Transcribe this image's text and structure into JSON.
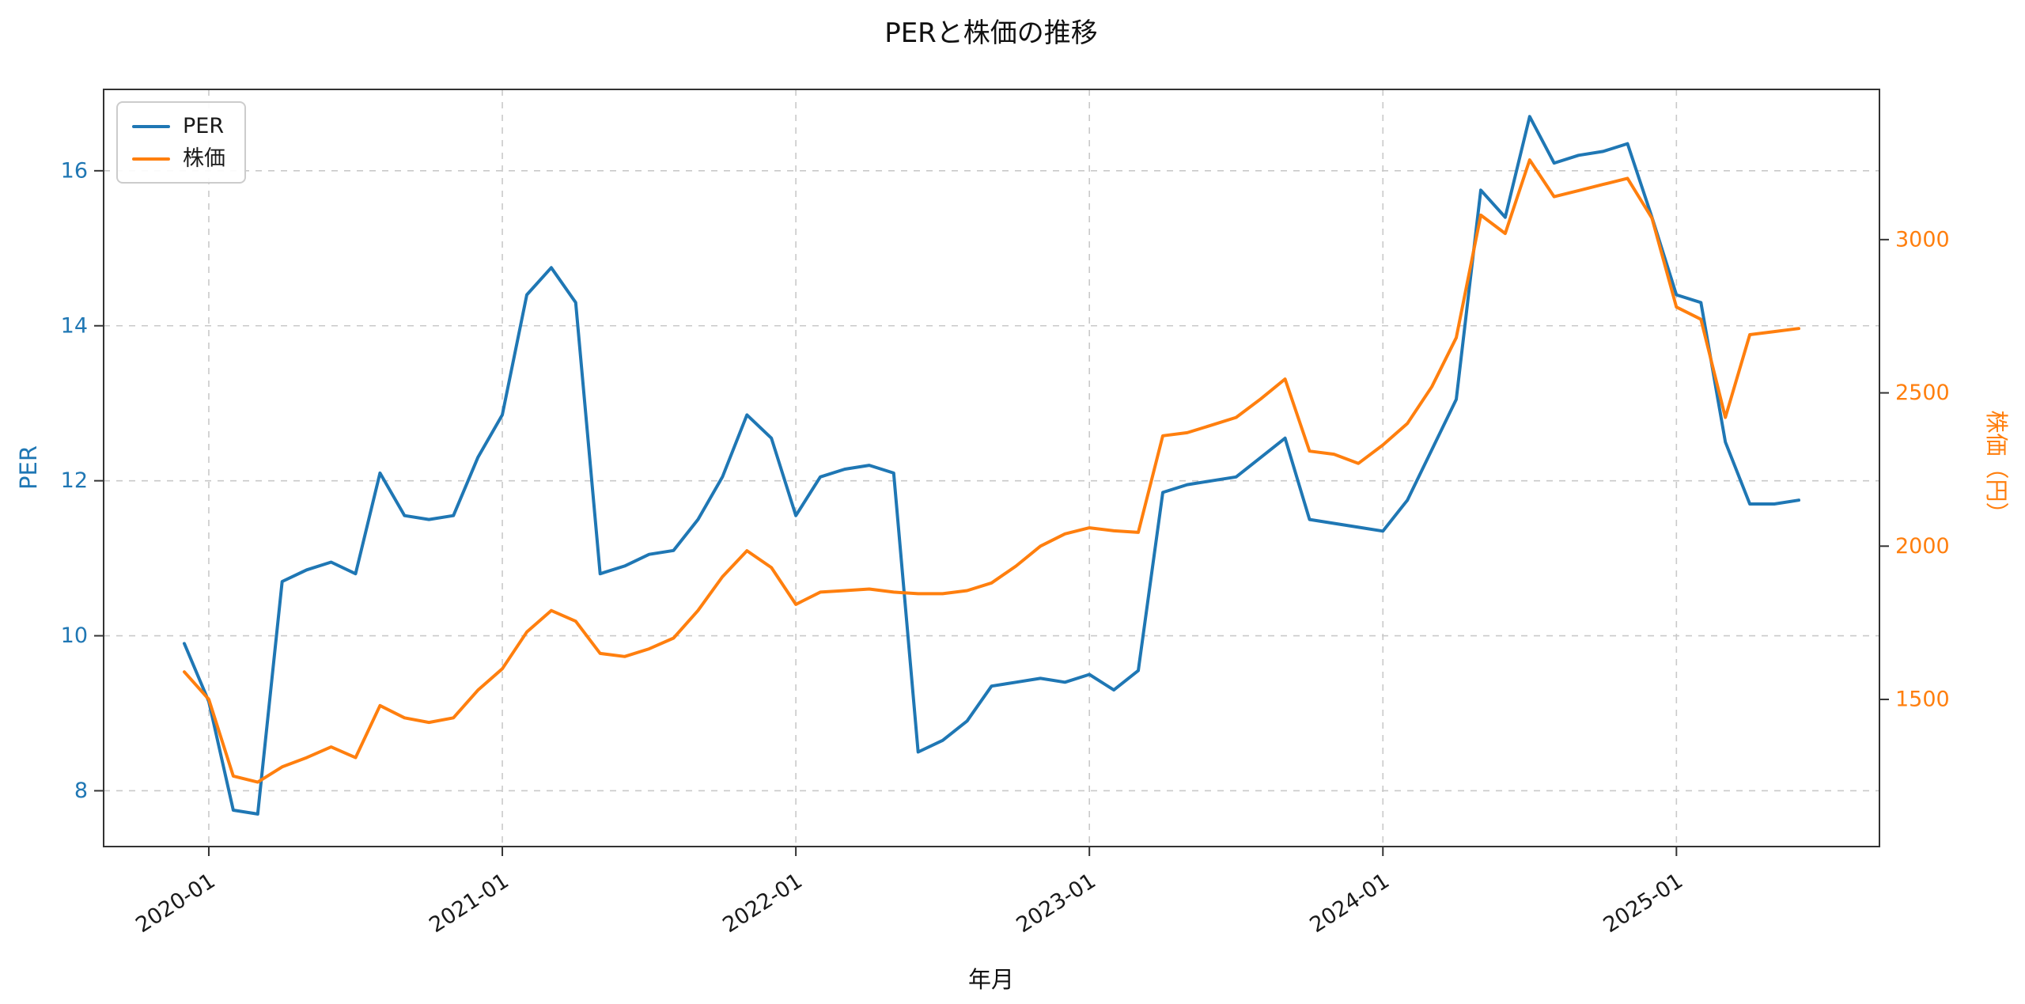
{
  "figure": {
    "background": "#ffffff"
  },
  "chart_data": {
    "type": "line",
    "title": "PERと株価の推移",
    "xlabel": "年月",
    "grid": true,
    "legend": {
      "position": "upper left"
    },
    "x": [
      "2019-12",
      "2020-01",
      "2020-02",
      "2020-03",
      "2020-04",
      "2020-05",
      "2020-06",
      "2020-07",
      "2020-08",
      "2020-09",
      "2020-10",
      "2020-11",
      "2020-12",
      "2021-01",
      "2021-02",
      "2021-03",
      "2021-04",
      "2021-05",
      "2021-06",
      "2021-07",
      "2021-08",
      "2021-09",
      "2021-10",
      "2021-11",
      "2021-12",
      "2022-01",
      "2022-02",
      "2022-03",
      "2022-04",
      "2022-05",
      "2022-06",
      "2022-07",
      "2022-08",
      "2022-09",
      "2022-10",
      "2022-11",
      "2022-12",
      "2023-01",
      "2023-02",
      "2023-03",
      "2023-04",
      "2023-05",
      "2023-06",
      "2023-07",
      "2023-08",
      "2023-09",
      "2023-10",
      "2023-11",
      "2023-12",
      "2024-01",
      "2024-02",
      "2024-03",
      "2024-04",
      "2024-05",
      "2024-06",
      "2024-07",
      "2024-08",
      "2024-09",
      "2024-10",
      "2024-11",
      "2024-12",
      "2025-01",
      "2025-02",
      "2025-03",
      "2025-04",
      "2025-05",
      "2025-06"
    ],
    "x_ticks": [
      "2020-01",
      "2021-01",
      "2022-01",
      "2023-01",
      "2024-01",
      "2025-01"
    ],
    "series": [
      {
        "name": "PER",
        "axis": "left",
        "color": "#1f77b4",
        "values": [
          9.9,
          9.15,
          7.75,
          7.7,
          10.7,
          10.85,
          10.95,
          10.8,
          12.1,
          11.55,
          11.5,
          11.55,
          12.3,
          12.85,
          14.4,
          14.75,
          14.3,
          10.8,
          10.9,
          11.05,
          11.1,
          11.5,
          12.05,
          12.85,
          12.55,
          11.55,
          12.05,
          12.15,
          12.2,
          12.1,
          8.5,
          8.65,
          8.9,
          9.35,
          9.4,
          9.45,
          9.4,
          9.5,
          9.3,
          9.55,
          11.85,
          11.95,
          12.0,
          12.05,
          12.3,
          12.55,
          11.5,
          11.45,
          11.4,
          11.35,
          11.75,
          12.4,
          13.05,
          15.75,
          15.4,
          16.7,
          16.1,
          16.2,
          16.25,
          16.35,
          15.4,
          14.4,
          14.3,
          12.5,
          11.7,
          11.7,
          11.75
        ]
      },
      {
        "name": "株価",
        "axis": "right",
        "color": "#ff7f0e",
        "values": [
          1590,
          1500,
          1250,
          1230,
          1280,
          1310,
          1345,
          1310,
          1480,
          1440,
          1425,
          1440,
          1530,
          1600,
          1720,
          1790,
          1755,
          1650,
          1640,
          1665,
          1700,
          1790,
          1900,
          1985,
          1930,
          1810,
          1850,
          1855,
          1860,
          1850,
          1845,
          1845,
          1855,
          1880,
          1935,
          2000,
          2040,
          2060,
          2050,
          2045,
          2360,
          2370,
          2395,
          2420,
          2480,
          2545,
          2310,
          2300,
          2270,
          2330,
          2400,
          2520,
          2680,
          3080,
          3020,
          3260,
          3140,
          3160,
          3180,
          3200,
          3070,
          2780,
          2740,
          2420,
          2690,
          2700,
          2710
        ]
      }
    ],
    "left_axis": {
      "label": "PER",
      "color": "#1f77b4",
      "ticks": [
        8,
        10,
        12,
        14,
        16
      ],
      "range": [
        7.28,
        17.05
      ]
    },
    "right_axis": {
      "label": "株価（円）",
      "color": "#ff7f0e",
      "ticks": [
        1500,
        2000,
        2500,
        3000
      ],
      "range": [
        1020,
        3490
      ]
    }
  }
}
